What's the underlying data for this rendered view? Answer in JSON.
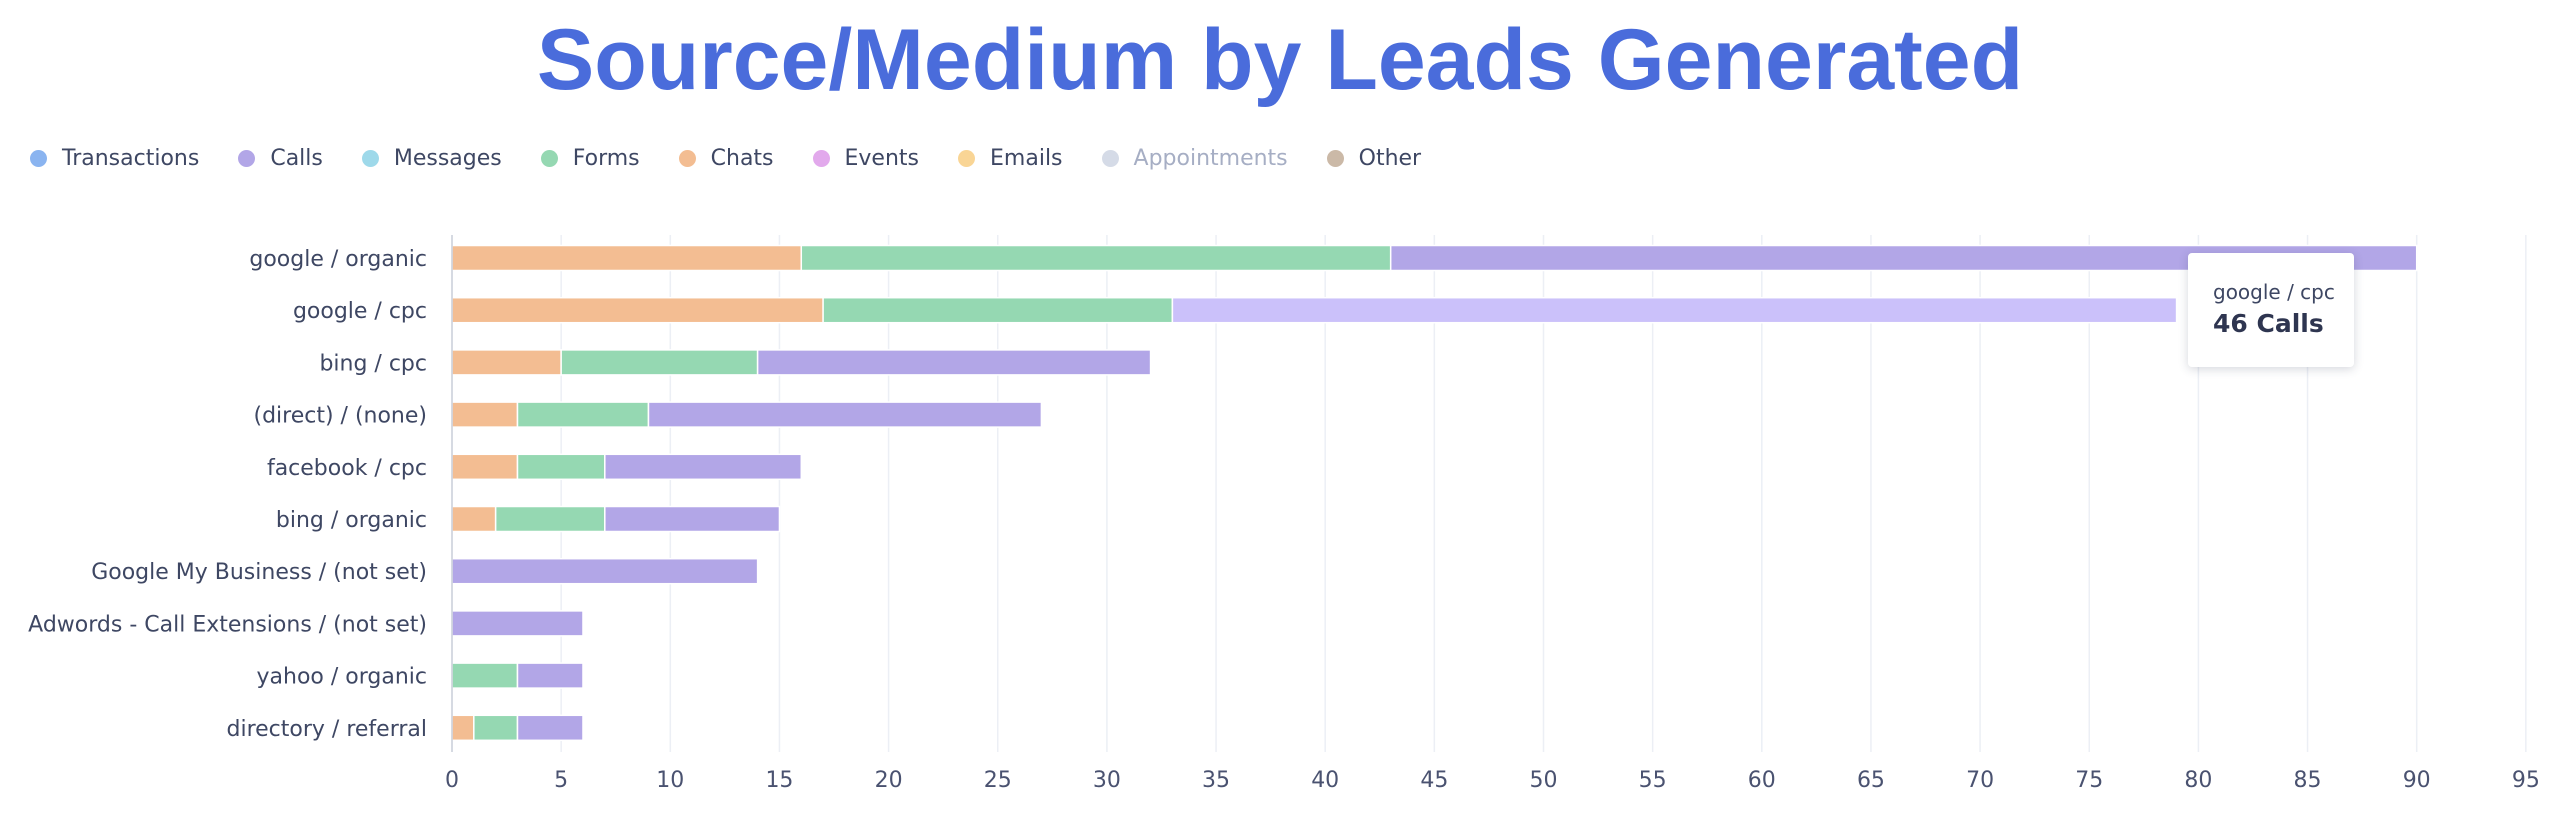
{
  "chart_data": {
    "type": "bar",
    "orientation": "horizontal",
    "stacked": true,
    "title": "Source/Medium by Leads Generated",
    "categories": [
      "google / organic",
      "google / cpc",
      "bing / cpc",
      "(direct) / (none)",
      "facebook / cpc",
      "bing / organic",
      "Google My Business / (not set)",
      "Adwords - Call Extensions / (not set)",
      "yahoo / organic",
      "directory / referral"
    ],
    "series": [
      {
        "name": "Chats",
        "color": "#f3bd92",
        "values": [
          16,
          17,
          5,
          3,
          3,
          2,
          0,
          0,
          0,
          1
        ]
      },
      {
        "name": "Forms",
        "color": "#95d8b2",
        "values": [
          27,
          16,
          9,
          6,
          4,
          5,
          0,
          0,
          3,
          2
        ]
      },
      {
        "name": "Calls",
        "color": "#b2a6e7",
        "highlight_color": "#cbc1fa",
        "values": [
          47,
          46,
          18,
          18,
          9,
          8,
          14,
          6,
          3,
          3
        ]
      }
    ],
    "xlim": [
      0,
      95
    ],
    "xticks": [
      0,
      5,
      10,
      15,
      20,
      25,
      30,
      35,
      40,
      45,
      50,
      55,
      60,
      65,
      70,
      75,
      80,
      85,
      90,
      95
    ],
    "grid": "vertical",
    "legend_position": "top-left",
    "legend": [
      {
        "name": "Transactions",
        "color": "#8ab4f0",
        "active": true
      },
      {
        "name": "Calls",
        "color": "#b2a6e7",
        "active": true
      },
      {
        "name": "Messages",
        "color": "#9ed9ea",
        "active": true
      },
      {
        "name": "Forms",
        "color": "#95d8b2",
        "active": true
      },
      {
        "name": "Chats",
        "color": "#f3bd92",
        "active": true
      },
      {
        "name": "Events",
        "color": "#e2a9ec",
        "active": true
      },
      {
        "name": "Emails",
        "color": "#f9d595",
        "active": true
      },
      {
        "name": "Appointments",
        "color": "#d5dbe7",
        "active": false
      },
      {
        "name": "Other",
        "color": "#cbb9a7",
        "active": true
      }
    ],
    "highlight": {
      "category": "google / cpc",
      "series": "Calls"
    },
    "tooltip": {
      "title": "google / cpc",
      "value": "46 Calls"
    }
  }
}
